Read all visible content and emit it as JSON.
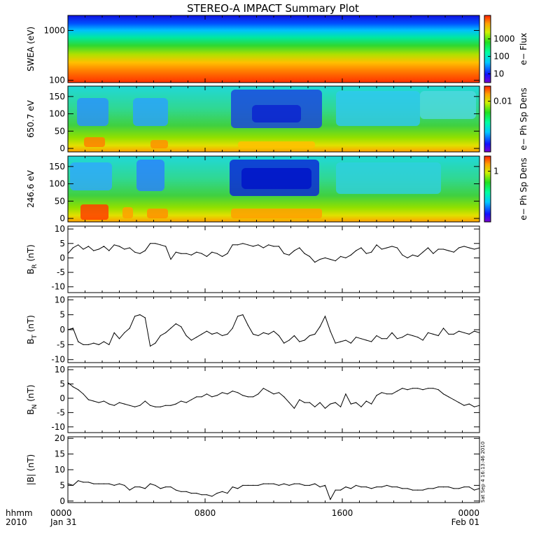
{
  "title": "STEREO-A IMPACT Summary Plot",
  "timestamp": "Sat Sep  4 16:13:46 2010",
  "x_axis": {
    "label_line1": "hhmm",
    "label_line2": "2010",
    "ticks": [
      {
        "hour": 0,
        "line1": "0000",
        "line2": "Jan 31"
      },
      {
        "hour": 8,
        "line1": "0800",
        "line2": ""
      },
      {
        "hour": 16,
        "line1": "1600",
        "line2": ""
      },
      {
        "hour": 24,
        "line1": "0000",
        "line2": "Feb 01"
      }
    ],
    "range_hours": [
      0,
      24
    ]
  },
  "spectrograms": [
    {
      "name": "swea",
      "ylabel": "SWEA (eV)",
      "scale": "log",
      "ylim": [
        90,
        2000
      ],
      "yticks": [
        {
          "v": 100,
          "t": "100"
        },
        {
          "v": 1000,
          "t": "1000"
        }
      ],
      "colorbar_label": "e− Flux",
      "colorbar_ticks": [
        {
          "f": 0.13,
          "t": "10"
        },
        {
          "f": 0.39,
          "t": "100"
        },
        {
          "f": 0.65,
          "t": "1000"
        }
      ]
    },
    {
      "name": "pad650",
      "ylabel": "650.7 eV",
      "scale": "linear",
      "ylim": [
        -10,
        180
      ],
      "yticks": [
        {
          "v": 0,
          "t": "0"
        },
        {
          "v": 50,
          "t": "50"
        },
        {
          "v": 100,
          "t": "100"
        },
        {
          "v": 150,
          "t": "150"
        }
      ],
      "colorbar_label": "e− Ph Sp Dens",
      "colorbar_ticks": [
        {
          "f": 0.77,
          "t": "0.01"
        }
      ]
    },
    {
      "name": "pad246",
      "ylabel": "246.6 eV",
      "scale": "linear",
      "ylim": [
        -10,
        180
      ],
      "yticks": [
        {
          "v": 0,
          "t": "0"
        },
        {
          "v": 50,
          "t": "50"
        },
        {
          "v": 100,
          "t": "100"
        },
        {
          "v": 150,
          "t": "150"
        }
      ],
      "colorbar_label": "e− Ph Sp Dens",
      "colorbar_ticks": [
        {
          "f": 0.77,
          "t": "1"
        }
      ]
    }
  ],
  "chart_data": [
    {
      "type": "line",
      "name": "br",
      "ylabel_main": "B",
      "ylabel_sub": "R",
      "ylabel_unit": "(nT)",
      "ylim": [
        -12,
        11
      ],
      "yticks": [
        -10,
        -5,
        0,
        5,
        10
      ],
      "x": [
        0,
        0.3,
        0.6,
        0.9,
        1.2,
        1.5,
        1.8,
        2.1,
        2.4,
        2.7,
        3.0,
        3.3,
        3.6,
        3.9,
        4.2,
        4.5,
        4.8,
        5.1,
        5.4,
        5.7,
        6.0,
        6.3,
        6.6,
        6.9,
        7.2,
        7.5,
        7.8,
        8.1,
        8.4,
        8.7,
        9.0,
        9.3,
        9.6,
        9.9,
        10.2,
        10.5,
        10.8,
        11.1,
        11.4,
        11.7,
        12.0,
        12.3,
        12.6,
        12.9,
        13.2,
        13.5,
        13.8,
        14.1,
        14.4,
        14.7,
        15.0,
        15.3,
        15.6,
        15.9,
        16.2,
        16.5,
        16.8,
        17.1,
        17.4,
        17.7,
        18.0,
        18.3,
        18.6,
        18.9,
        19.2,
        19.5,
        19.8,
        20.1,
        20.4,
        20.7,
        21.0,
        21.3,
        21.6,
        21.9,
        22.2,
        22.5,
        22.8,
        23.1,
        23.4,
        23.7,
        24.0
      ],
      "y": [
        1.5,
        3.5,
        4.5,
        3.0,
        4.0,
        2.5,
        3.0,
        4.0,
        2.5,
        4.5,
        4.0,
        3.0,
        3.5,
        2.0,
        1.5,
        2.5,
        5.0,
        5.0,
        4.5,
        4.0,
        -0.5,
        2.0,
        1.5,
        1.5,
        1.0,
        2.0,
        1.5,
        0.5,
        2.0,
        1.5,
        0.5,
        1.5,
        4.5,
        4.5,
        5.0,
        4.5,
        4.0,
        4.5,
        3.5,
        4.5,
        4.0,
        4.0,
        1.5,
        1.0,
        2.5,
        3.5,
        1.5,
        0.5,
        -1.5,
        -0.5,
        0,
        -0.5,
        -1.0,
        0.5,
        0,
        1.0,
        2.5,
        3.5,
        1.5,
        2.0,
        4.5,
        3.0,
        3.5,
        4.0,
        3.5,
        1.0,
        0,
        1.0,
        0.5,
        2.0,
        3.5,
        1.5,
        3.0,
        3.0,
        2.5,
        2.0,
        3.5,
        4.0,
        3.5,
        3.0,
        3.5
      ]
    },
    {
      "type": "line",
      "name": "bt",
      "ylabel_main": "B",
      "ylabel_sub": "T",
      "ylabel_unit": "(nT)",
      "ylim": [
        -11,
        11
      ],
      "yticks": [
        -10,
        -5,
        0,
        5,
        10
      ],
      "x": [
        0,
        0.3,
        0.6,
        0.9,
        1.2,
        1.5,
        1.8,
        2.1,
        2.4,
        2.7,
        3.0,
        3.3,
        3.6,
        3.9,
        4.2,
        4.5,
        4.8,
        5.1,
        5.4,
        5.7,
        6.0,
        6.3,
        6.6,
        6.9,
        7.2,
        7.5,
        7.8,
        8.1,
        8.4,
        8.7,
        9.0,
        9.3,
        9.6,
        9.9,
        10.2,
        10.5,
        10.8,
        11.1,
        11.4,
        11.7,
        12.0,
        12.3,
        12.6,
        12.9,
        13.2,
        13.5,
        13.8,
        14.1,
        14.4,
        14.7,
        15.0,
        15.3,
        15.6,
        15.9,
        16.2,
        16.5,
        16.8,
        17.1,
        17.4,
        17.7,
        18.0,
        18.3,
        18.6,
        18.9,
        19.2,
        19.5,
        19.8,
        20.1,
        20.4,
        20.7,
        21.0,
        21.3,
        21.6,
        21.9,
        22.2,
        22.5,
        22.8,
        23.1,
        23.4,
        23.7,
        24.0
      ],
      "y": [
        0,
        0.5,
        -4.0,
        -5.0,
        -5.0,
        -4.5,
        -5.0,
        -4.0,
        -5.0,
        -1.0,
        -3.0,
        -1.0,
        0.5,
        4.5,
        5.0,
        4.0,
        -5.5,
        -4.5,
        -2.0,
        -1.0,
        0.5,
        2.0,
        1.0,
        -2.0,
        -3.5,
        -2.5,
        -1.5,
        -0.5,
        -1.5,
        -1.0,
        -2.0,
        -1.5,
        0.5,
        4.5,
        5.0,
        1.5,
        -1.5,
        -2.0,
        -1.0,
        -1.5,
        -0.5,
        -2.0,
        -4.5,
        -3.5,
        -2.0,
        -4.0,
        -3.5,
        -2.0,
        -1.5,
        1.0,
        4.5,
        -0.5,
        -4.5,
        -4.0,
        -3.5,
        -4.5,
        -2.5,
        -3.0,
        -3.5,
        -4.0,
        -2.0,
        -3.0,
        -3.0,
        -1.0,
        -3.0,
        -2.5,
        -1.5,
        -2.0,
        -2.5,
        -3.5,
        -1.0,
        -1.5,
        -2.0,
        0.5,
        -1.5,
        -1.5,
        -0.5,
        -1.0,
        -1.5,
        -0.5,
        -1.0
      ]
    },
    {
      "type": "line",
      "name": "bn",
      "ylabel_main": "B",
      "ylabel_sub": "N",
      "ylabel_unit": "(nT)",
      "ylim": [
        -12,
        11
      ],
      "yticks": [
        -10,
        -5,
        0,
        5,
        10
      ],
      "x": [
        0,
        0.3,
        0.6,
        0.9,
        1.2,
        1.5,
        1.8,
        2.1,
        2.4,
        2.7,
        3.0,
        3.3,
        3.6,
        3.9,
        4.2,
        4.5,
        4.8,
        5.1,
        5.4,
        5.7,
        6.0,
        6.3,
        6.6,
        6.9,
        7.2,
        7.5,
        7.8,
        8.1,
        8.4,
        8.7,
        9.0,
        9.3,
        9.6,
        9.9,
        10.2,
        10.5,
        10.8,
        11.1,
        11.4,
        11.7,
        12.0,
        12.3,
        12.6,
        12.9,
        13.2,
        13.5,
        13.8,
        14.1,
        14.4,
        14.7,
        15.0,
        15.3,
        15.6,
        15.9,
        16.2,
        16.5,
        16.8,
        17.1,
        17.4,
        17.7,
        18.0,
        18.3,
        18.6,
        18.9,
        19.2,
        19.5,
        19.8,
        20.1,
        20.4,
        20.7,
        21.0,
        21.3,
        21.6,
        21.9,
        22.2,
        22.5,
        22.8,
        23.1,
        23.4,
        23.7,
        24.0
      ],
      "y": [
        5.5,
        4.0,
        3.0,
        1.5,
        -0.5,
        -1.0,
        -1.5,
        -1.0,
        -2.0,
        -2.5,
        -1.5,
        -2.0,
        -2.5,
        -3.0,
        -2.5,
        -1.0,
        -2.5,
        -3.0,
        -3.0,
        -2.5,
        -2.5,
        -2.0,
        -1.0,
        -1.5,
        -0.5,
        0.5,
        0.5,
        1.5,
        0.5,
        1.0,
        2.0,
        1.5,
        2.5,
        2.0,
        1.0,
        0.5,
        0.5,
        1.5,
        3.5,
        2.5,
        1.5,
        2.0,
        0.5,
        -1.5,
        -3.5,
        -0.5,
        -1.5,
        -1.5,
        -3.0,
        -1.5,
        -3.5,
        -2.0,
        -1.5,
        -3.0,
        1.5,
        -2.0,
        -1.5,
        -3.0,
        -1.0,
        -2.0,
        1.0,
        2.0,
        1.5,
        1.5,
        2.5,
        3.5,
        3.0,
        3.5,
        3.5,
        3.0,
        3.5,
        3.5,
        3.0,
        1.5,
        0.5,
        -0.5,
        -1.5,
        -2.5,
        -2.0,
        -3.0,
        -2.5
      ]
    },
    {
      "type": "line",
      "name": "bmag",
      "ylabel_main": "|B|",
      "ylabel_sub": "",
      "ylabel_unit": "(nT)",
      "ylim": [
        -0.5,
        20.5
      ],
      "yticks": [
        0,
        5,
        10,
        15,
        20
      ],
      "x": [
        0,
        0.3,
        0.6,
        0.9,
        1.2,
        1.5,
        1.8,
        2.1,
        2.4,
        2.7,
        3.0,
        3.3,
        3.6,
        3.9,
        4.2,
        4.5,
        4.8,
        5.1,
        5.4,
        5.7,
        6.0,
        6.3,
        6.6,
        6.9,
        7.2,
        7.5,
        7.8,
        8.1,
        8.4,
        8.7,
        9.0,
        9.3,
        9.6,
        9.9,
        10.2,
        10.5,
        10.8,
        11.1,
        11.4,
        11.7,
        12.0,
        12.3,
        12.6,
        12.9,
        13.2,
        13.5,
        13.8,
        14.1,
        14.4,
        14.7,
        15.0,
        15.3,
        15.6,
        15.9,
        16.2,
        16.5,
        16.8,
        17.1,
        17.4,
        17.7,
        18.0,
        18.3,
        18.6,
        18.9,
        19.2,
        19.5,
        19.8,
        20.1,
        20.4,
        20.7,
        21.0,
        21.3,
        21.6,
        21.9,
        22.2,
        22.5,
        22.8,
        23.1,
        23.4,
        23.7,
        24.0
      ],
      "y": [
        5.5,
        5.0,
        6.5,
        6.0,
        6.0,
        5.5,
        5.5,
        5.5,
        5.5,
        5.0,
        5.5,
        5.0,
        3.5,
        4.5,
        4.5,
        4.0,
        5.5,
        5.0,
        4.0,
        4.5,
        4.5,
        3.5,
        3.0,
        3.0,
        2.5,
        2.5,
        2.0,
        2.0,
        1.5,
        2.5,
        3.0,
        2.5,
        4.5,
        4.0,
        5.0,
        5.0,
        5.0,
        5.0,
        5.5,
        5.5,
        5.5,
        5.0,
        5.5,
        5.0,
        5.5,
        5.5,
        5.0,
        5.0,
        5.5,
        4.5,
        5.0,
        0.5,
        3.5,
        3.5,
        4.5,
        4.0,
        5.0,
        4.5,
        4.5,
        4.0,
        4.5,
        4.5,
        5.0,
        4.5,
        4.5,
        4.0,
        4.0,
        3.5,
        3.5,
        3.5,
        4.0,
        4.0,
        4.5,
        4.5,
        4.5,
        4.0,
        4.0,
        4.5,
        4.5,
        3.5,
        4.0
      ]
    }
  ]
}
